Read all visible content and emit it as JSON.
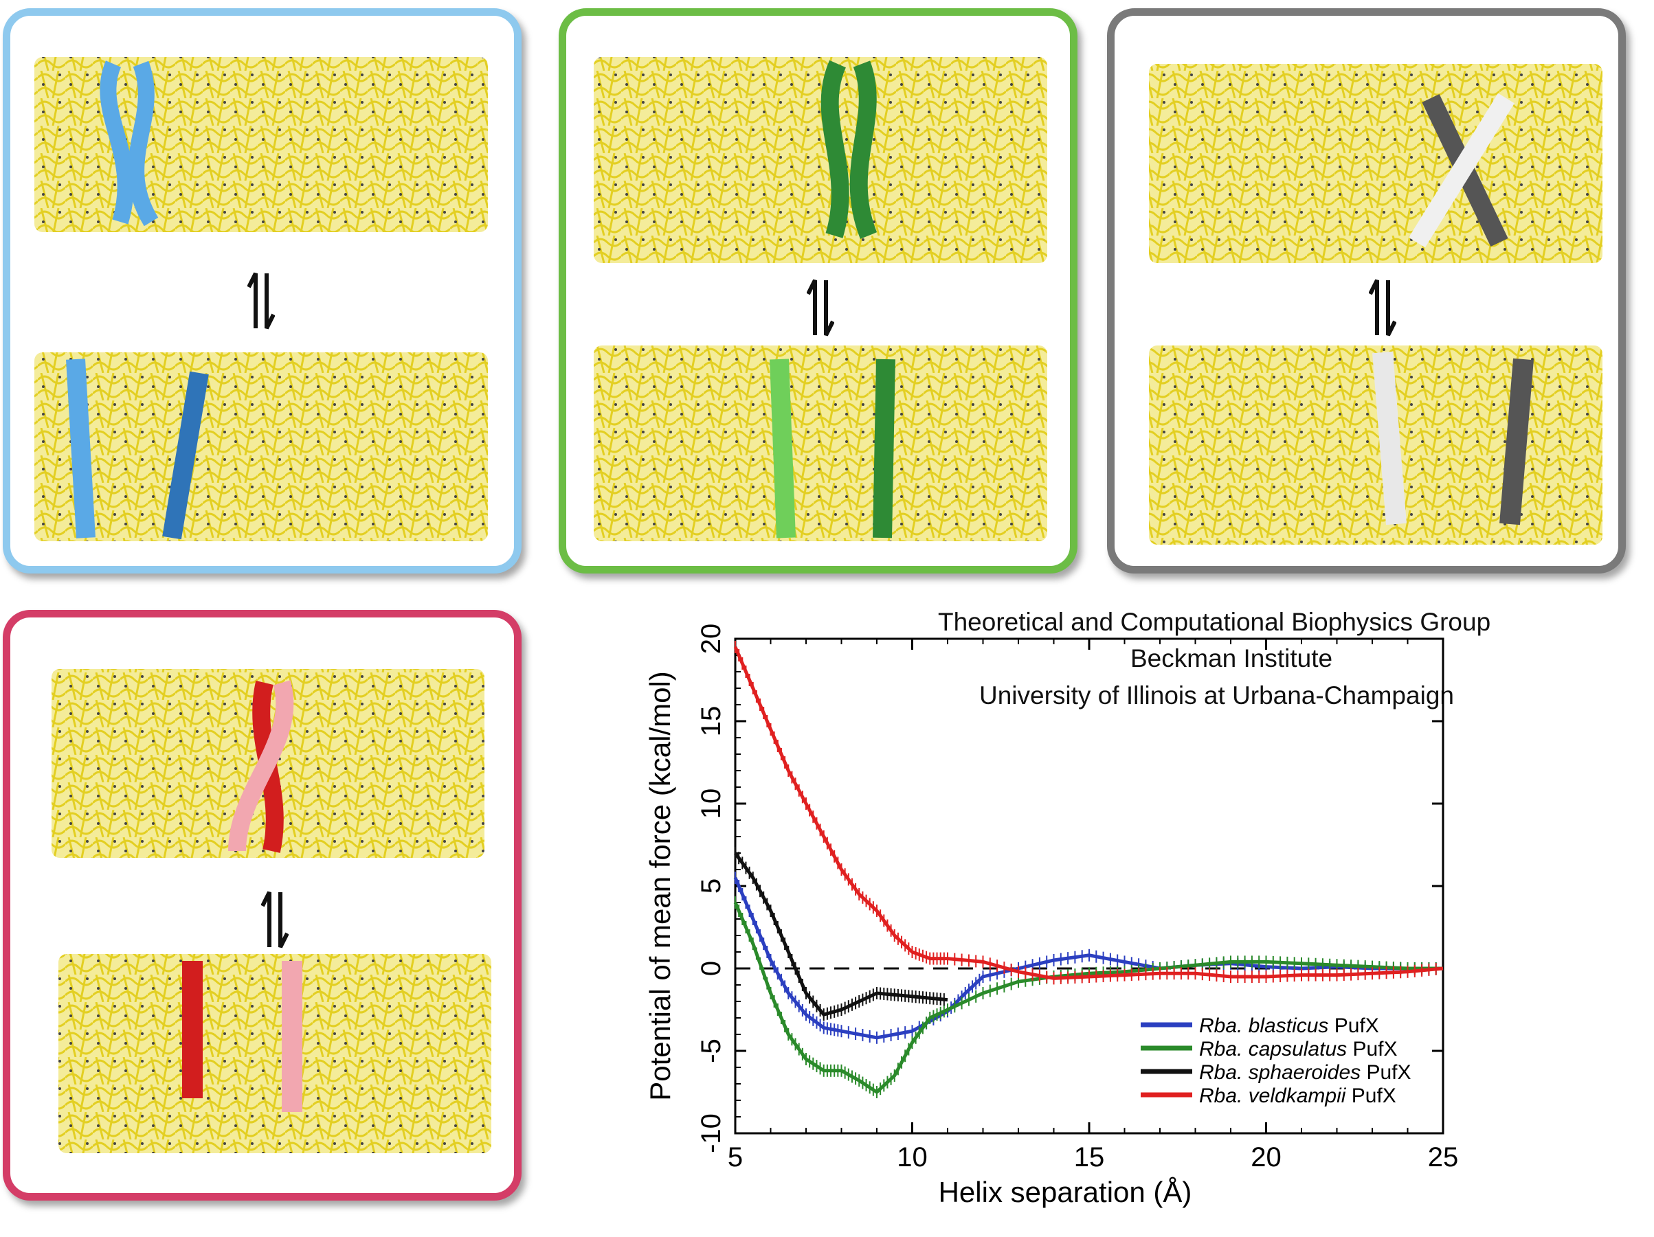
{
  "panels": [
    {
      "id": "blue",
      "border": "#8ec9ee",
      "helixA": "#5aa9e6",
      "helixB": "#2f74b8"
    },
    {
      "id": "green",
      "border": "#6cbd45",
      "helixA": "#6fcf5a",
      "helixB": "#2e8a35"
    },
    {
      "id": "gray",
      "border": "#7a7a7a",
      "helixA": "#f0f0f0",
      "helixB": "#555555"
    },
    {
      "id": "red",
      "border": "#d43d67",
      "helixA": "#f2a7b0",
      "helixB": "#d21e1e"
    }
  ],
  "membrane_color": "#efe04a",
  "credit": {
    "line1": "Theoretical and Computational Biophysics Group",
    "line2": "Beckman Institute",
    "line3": "University of Illinois at Urbana-Champaign"
  },
  "chart_data": {
    "type": "line",
    "xlabel": "Helix separation (Å)",
    "ylabel": "Potential of mean force (kcal/mol)",
    "xlim": [
      5,
      25
    ],
    "ylim": [
      -10,
      20
    ],
    "xticks": [
      "5",
      "10",
      "15",
      "20",
      "25"
    ],
    "yticks": [
      "-10",
      "-5",
      "0",
      "5",
      "10",
      "15",
      "20"
    ],
    "reference_line": 0,
    "legend_position": "lower-right",
    "series": [
      {
        "name": "Rba. blasticus",
        "suffix": "PufX",
        "color": "#2b3fc0",
        "x": [
          5,
          5.5,
          6,
          6.5,
          7,
          7.5,
          8,
          9,
          10,
          11,
          11.5,
          12,
          13,
          14,
          15,
          16,
          17,
          18,
          19,
          20,
          21,
          22,
          23,
          24,
          25
        ],
        "y": [
          5.5,
          3,
          0.5,
          -1.5,
          -2.8,
          -3.6,
          -3.8,
          -4.2,
          -3.8,
          -2.6,
          -1.5,
          -0.5,
          0,
          0.5,
          0.8,
          0.4,
          0,
          0.2,
          0.3,
          0.1,
          0,
          0.1,
          0,
          0,
          0
        ]
      },
      {
        "name": "Rba. capsulatus",
        "suffix": "PufX",
        "color": "#2a8a2a",
        "x": [
          5,
          5.5,
          6,
          6.5,
          7,
          7.5,
          8,
          8.5,
          9,
          9.5,
          10,
          10.5,
          11,
          12,
          13,
          14,
          15,
          16,
          17,
          18,
          19,
          20,
          21,
          22,
          23,
          24,
          25
        ],
        "y": [
          4,
          1.5,
          -1.5,
          -4,
          -5.5,
          -6.2,
          -6.2,
          -6.8,
          -7.5,
          -6.5,
          -4.5,
          -3,
          -2.5,
          -1.5,
          -0.8,
          -0.5,
          -0.3,
          -0.2,
          0,
          0.2,
          0.4,
          0.4,
          0.3,
          0.2,
          0.1,
          0,
          0
        ]
      },
      {
        "name": "Rba. sphaeroides",
        "suffix": "PufX",
        "color": "#111111",
        "x": [
          5,
          5.5,
          6,
          6.5,
          7,
          7.5,
          8,
          8.5,
          9,
          9.5,
          10,
          10.5,
          11
        ],
        "y": [
          7,
          5.5,
          3.5,
          1,
          -1.5,
          -2.8,
          -2.5,
          -2.0,
          -1.5,
          -1.6,
          -1.7,
          -1.8,
          -1.9
        ]
      },
      {
        "name": "Rba. veldkampii",
        "suffix": "PufX",
        "color": "#e02020",
        "x": [
          5,
          5.5,
          6,
          6.5,
          7,
          7.5,
          8,
          8.5,
          9,
          9.5,
          10,
          10.5,
          11,
          12,
          13,
          14,
          15,
          16,
          17,
          18,
          19,
          20,
          21,
          22,
          23,
          24,
          25
        ],
        "y": [
          19.5,
          17,
          14.5,
          12,
          10,
          8,
          6,
          4.5,
          3.5,
          2,
          1,
          0.6,
          0.6,
          0.4,
          -0.2,
          -0.6,
          -0.5,
          -0.4,
          -0.3,
          -0.3,
          -0.5,
          -0.5,
          -0.4,
          -0.4,
          -0.3,
          -0.2,
          0
        ]
      }
    ]
  }
}
